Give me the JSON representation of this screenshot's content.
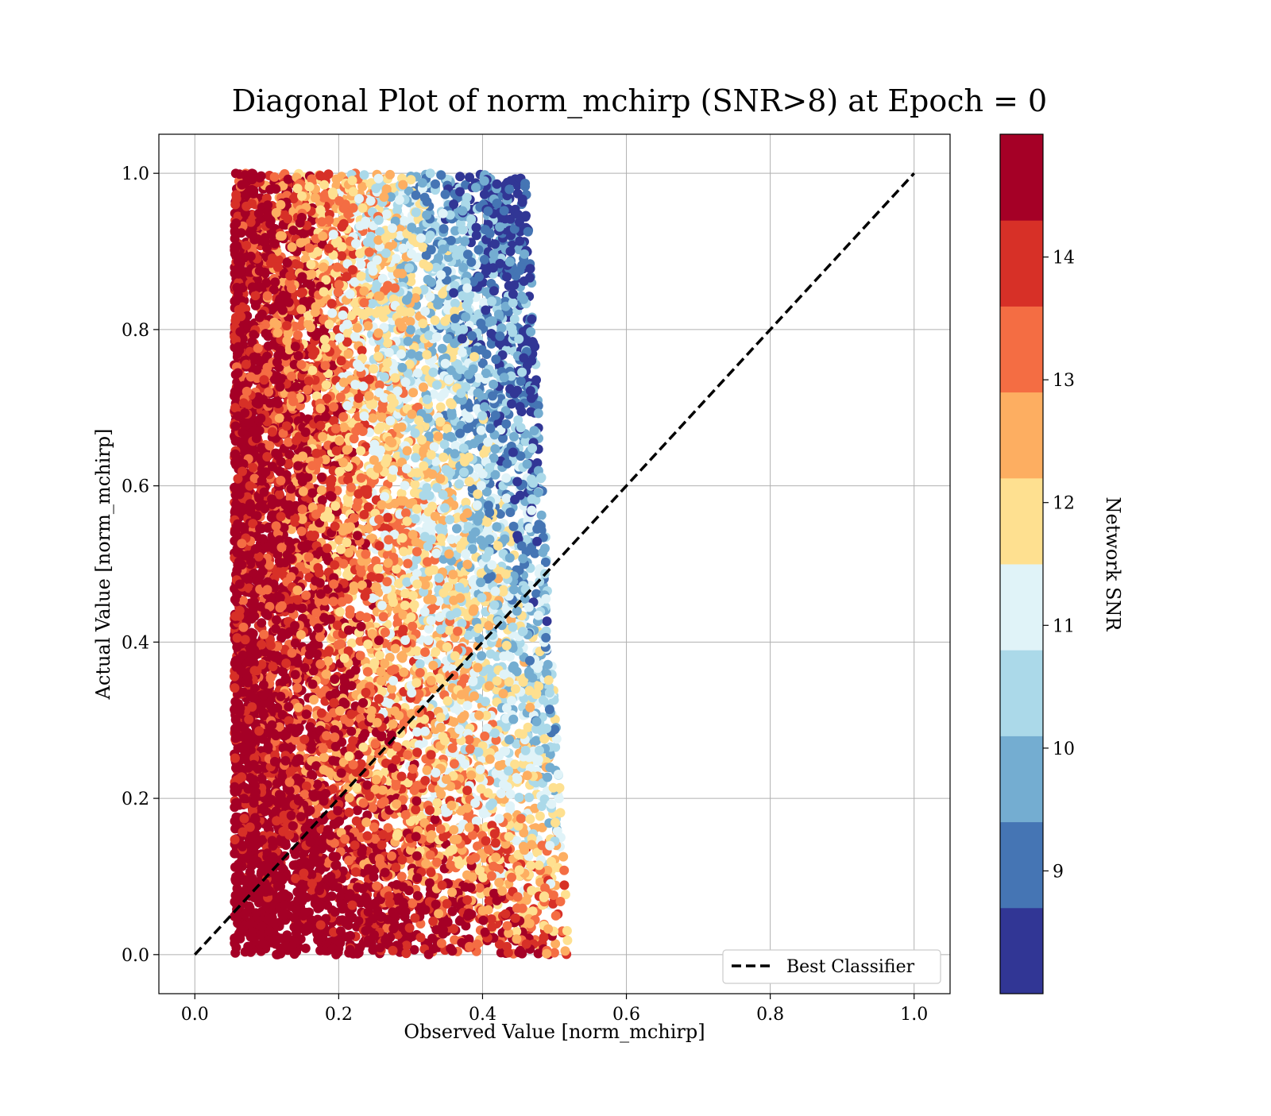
{
  "chart_data": {
    "type": "scatter",
    "title": "Diagonal Plot of norm_mchirp (SNR>8) at Epoch = 0",
    "xlabel": "Observed Value [norm_mchirp]",
    "ylabel": "Actual Value [norm_mchirp]",
    "xlim": [
      -0.05,
      1.05
    ],
    "ylim": [
      -0.05,
      1.05
    ],
    "xticks": [
      "0.0",
      "0.2",
      "0.4",
      "0.6",
      "0.8",
      "1.0"
    ],
    "yticks": [
      "0.0",
      "0.2",
      "0.4",
      "0.6",
      "0.8",
      "1.0"
    ],
    "grid": true,
    "reference_line": {
      "label": "Best Classifier",
      "x": [
        0.0,
        1.0
      ],
      "y": [
        0.0,
        1.0
      ],
      "style": "dashed",
      "color": "#000000"
    },
    "legend": {
      "position": "lower right",
      "entries": [
        "Best Classifier"
      ]
    },
    "colorbar": {
      "label": "Network SNR",
      "range": [
        8,
        15
      ],
      "ticks": [
        "9",
        "10",
        "11",
        "12",
        "13",
        "14"
      ],
      "colors": [
        "#313695",
        "#4575b4",
        "#74add1",
        "#abd9e9",
        "#e0f3f8",
        "#fee090",
        "#fdae61",
        "#f46d43",
        "#d73027",
        "#a50026"
      ]
    },
    "point_distribution": {
      "x_range": [
        0.05,
        0.52
      ],
      "y_range": [
        0.0,
        1.0
      ],
      "note_trend": "high SNR concentrated at low observed values; low SNR at higher observed values"
    }
  }
}
